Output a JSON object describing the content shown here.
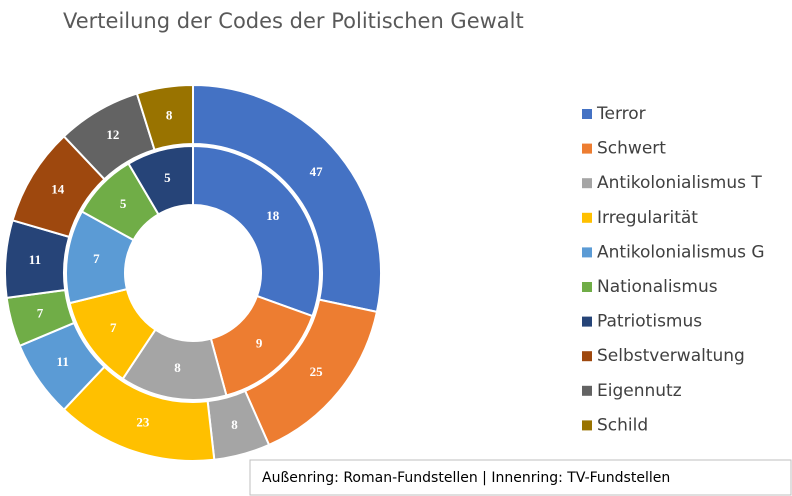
{
  "chart_data": {
    "type": "donut",
    "title": "Verteilung der Codes der Politischen Gewalt",
    "categories": [
      "Terror",
      "Schwert",
      "Antikolonialismus T",
      "Irregularität",
      "Antikolonialismus G",
      "Nationalismus",
      "Patriotismus",
      "Selbstverwaltung",
      "Eigennutz",
      "Schild"
    ],
    "colors": [
      "#4472c4",
      "#ed7d31",
      "#a5a5a5",
      "#ffc000",
      "#5b9bd5",
      "#70ad47",
      "#264478",
      "#9e480e",
      "#636363",
      "#997300"
    ],
    "series": [
      {
        "values": [
          47,
          25,
          8,
          23,
          11,
          7,
          11,
          14,
          12,
          8
        ]
      },
      {
        "values": [
          18,
          9,
          8,
          7,
          7,
          5,
          5,
          0,
          0,
          0
        ]
      }
    ],
    "note": "Außenring: Roman-Fundstellen | Innenring: TV-Fundstellen"
  }
}
